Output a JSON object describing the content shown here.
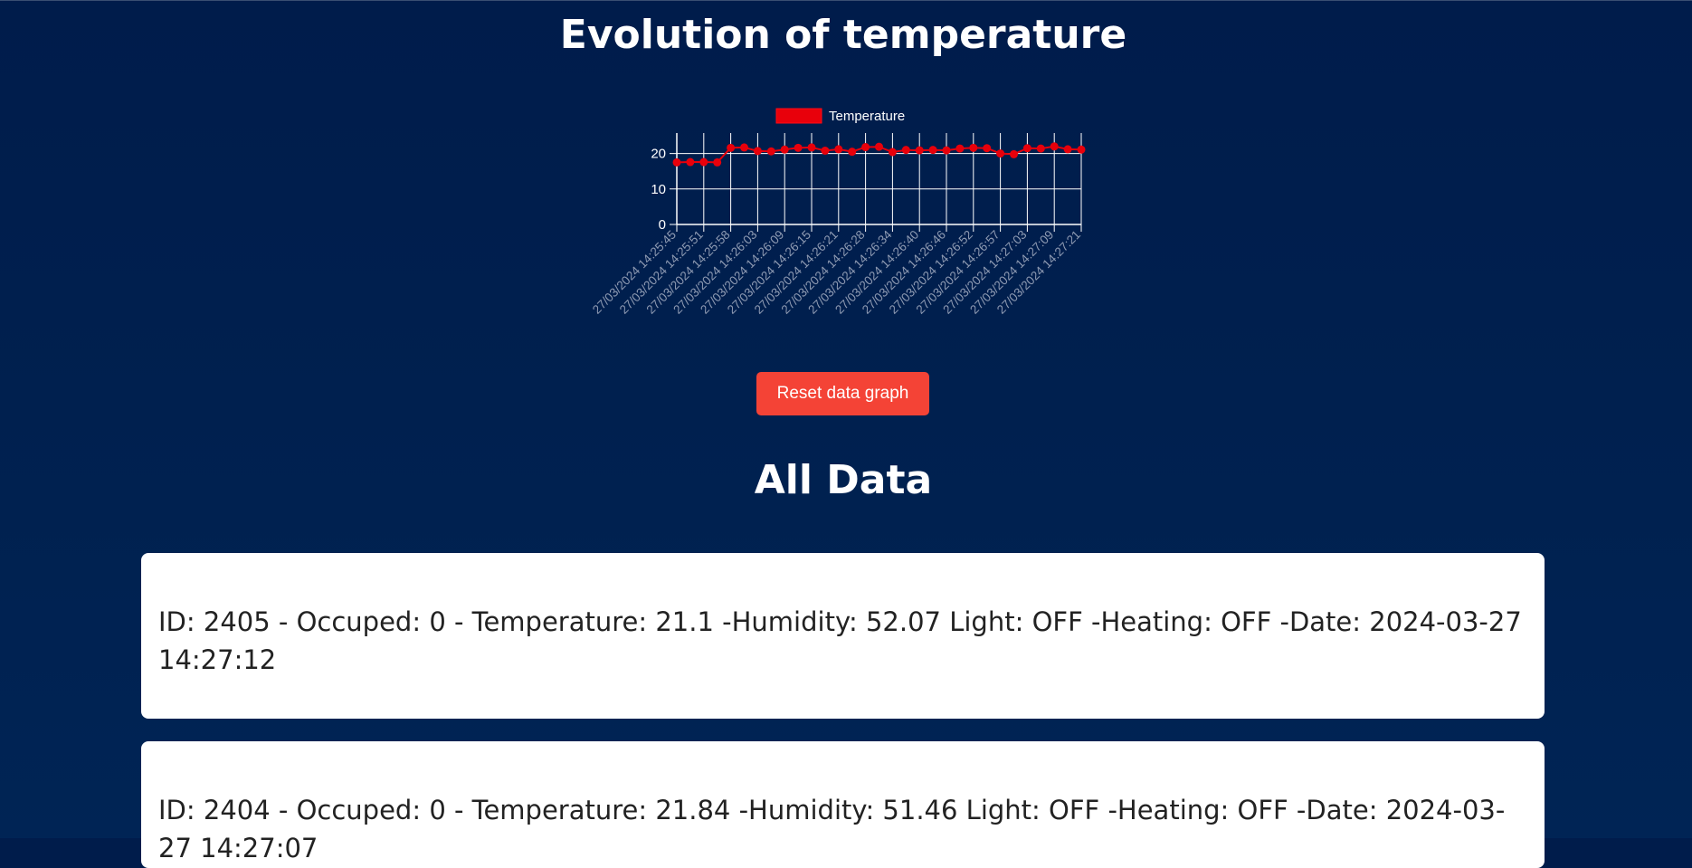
{
  "header": {
    "title": "Evolution of temperature"
  },
  "chart_data": {
    "type": "line",
    "legend_position": "top",
    "grid": true,
    "ylim": [
      0,
      25
    ],
    "yticks": [
      0,
      10,
      20
    ],
    "x_tick_labels": [
      "27/03/2024 14:25:45",
      "27/03/2024 14:25:51",
      "27/03/2024 14:25:58",
      "27/03/2024 14:26:03",
      "27/03/2024 14:26:09",
      "27/03/2024 14:26:15",
      "27/03/2024 14:26:21",
      "27/03/2024 14:26:28",
      "27/03/2024 14:26:34",
      "27/03/2024 14:26:40",
      "27/03/2024 14:26:46",
      "27/03/2024 14:26:52",
      "27/03/2024 14:26:57",
      "27/03/2024 14:27:03",
      "27/03/2024 14:27:09",
      "27/03/2024 14:27:21"
    ],
    "series": [
      {
        "name": "Temperature",
        "color": "#e8000b",
        "values": [
          17.5,
          17.6,
          17.6,
          17.5,
          21.6,
          21.7,
          20.7,
          20.6,
          21.1,
          21.6,
          21.7,
          20.8,
          21.2,
          20.5,
          21.8,
          21.9,
          20.4,
          21.0,
          20.9,
          21.0,
          20.9,
          21.4,
          21.6,
          21.5,
          20.0,
          19.8,
          21.5,
          21.4,
          22.0,
          21.2,
          21.1
        ]
      }
    ]
  },
  "controls": {
    "reset_label": "Reset data graph"
  },
  "section": {
    "title": "All Data"
  },
  "records": [
    {
      "text": "ID: 2405 - Occuped: 0 - Temperature: 21.1 -Humidity: 52.07 Light: OFF -Heating: OFF -Date: 2024-03-27 14:27:12"
    },
    {
      "text": "ID: 2404 - Occuped: 0 - Temperature: 21.84 -Humidity: 51.46 Light: OFF -Heating: OFF -Date: 2024-03-27 14:27:07"
    }
  ],
  "colors": {
    "background": "#001c4b",
    "accent_red": "#f44336",
    "series_red": "#e8000b"
  }
}
